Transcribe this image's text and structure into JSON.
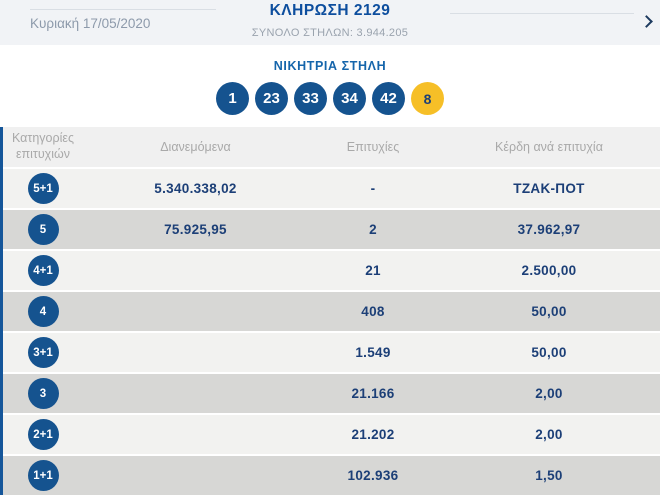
{
  "header": {
    "date": "Κυριακή 17/05/2020",
    "title": "ΚΛΗΡΩΣΗ 2129",
    "subtitle": "ΣΥΝΟΛΟ ΣΤΗΛΩΝ: 3.944.205"
  },
  "winning": {
    "title": "ΝΙΚΗΤΡΙΑ ΣΤΗΛΗ",
    "numbers": [
      "1",
      "23",
      "33",
      "34",
      "42"
    ],
    "bonus": "8"
  },
  "table": {
    "headers": {
      "category": "Κατηγορίες επιτυχιών",
      "distributed": "Διανεμόμενα",
      "winners": "Επιτυχίες",
      "prize": "Κέρδη ανά επιτυχία"
    },
    "rows": [
      {
        "category": "5+1",
        "distributed": "5.340.338,02",
        "winners": "-",
        "prize": "ΤΖΑΚ-ΠΟΤ"
      },
      {
        "category": "5",
        "distributed": "75.925,95",
        "winners": "2",
        "prize": "37.962,97"
      },
      {
        "category": "4+1",
        "distributed": "",
        "winners": "21",
        "prize": "2.500,00"
      },
      {
        "category": "4",
        "distributed": "",
        "winners": "408",
        "prize": "50,00"
      },
      {
        "category": "3+1",
        "distributed": "",
        "winners": "1.549",
        "prize": "50,00"
      },
      {
        "category": "3",
        "distributed": "",
        "winners": "21.166",
        "prize": "2,00"
      },
      {
        "category": "2+1",
        "distributed": "",
        "winners": "21.202",
        "prize": "2,00"
      },
      {
        "category": "1+1",
        "distributed": "",
        "winners": "102.936",
        "prize": "1,50"
      }
    ]
  },
  "colors": {
    "accent_blue": "#0d4e9e",
    "ball_blue": "#15538f",
    "bonus_yellow": "#f6bf27",
    "value_navy": "#1c3f77",
    "row_light": "#f2f2f0",
    "row_dark": "#d7d7d5",
    "topbar_bg": "#f1f3f6"
  }
}
